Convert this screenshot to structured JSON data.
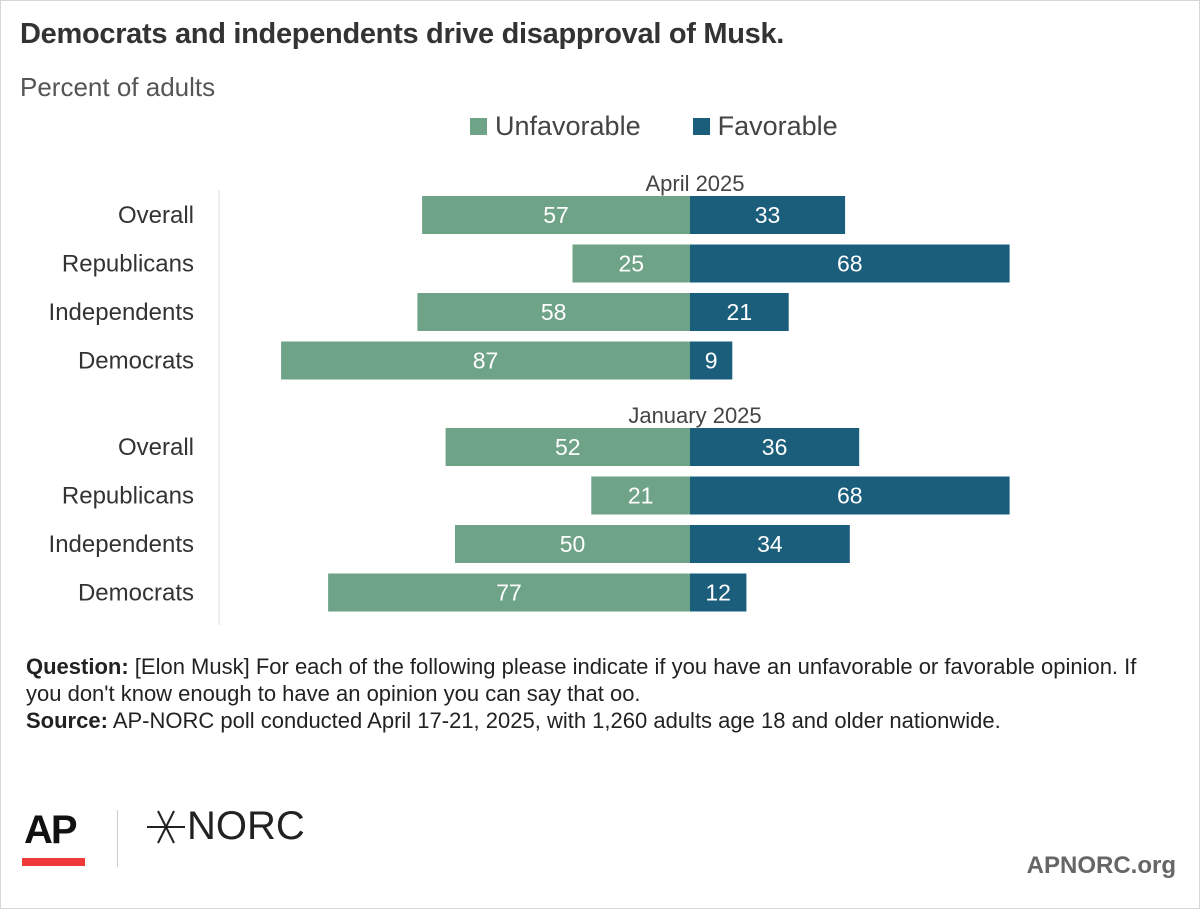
{
  "title": "Democrats and independents drive disapproval of Musk.",
  "subtitle": "Percent of adults",
  "colors": {
    "unfavorable": "#6fa387",
    "favorable": "#1a5e7c"
  },
  "chart_data": {
    "type": "bar",
    "orientation": "horizontal-diverging",
    "legend": [
      "Unfavorable",
      "Favorable"
    ],
    "legend_placement": "top",
    "groups": [
      {
        "label": "April 2025",
        "categories": [
          "Overall",
          "Republicans",
          "Independents",
          "Democrats"
        ],
        "series": [
          {
            "name": "Unfavorable",
            "values": [
              57,
              25,
              58,
              87
            ]
          },
          {
            "name": "Favorable",
            "values": [
              33,
              68,
              21,
              9
            ]
          }
        ]
      },
      {
        "label": "January 2025",
        "categories": [
          "Overall",
          "Republicans",
          "Independents",
          "Democrats"
        ],
        "series": [
          {
            "name": "Unfavorable",
            "values": [
              52,
              21,
              50,
              77
            ]
          },
          {
            "name": "Favorable",
            "values": [
              36,
              68,
              34,
              12
            ]
          }
        ]
      }
    ]
  },
  "footer": {
    "question_label": "Question:",
    "question_text": " [Elon Musk] For each of the following please indicate if you have an unfavorable or favorable opinion. If you don't know enough to have an opinion you can say that oo.",
    "source_label": "Source:",
    "source_text": " AP-NORC poll conducted April 17-21, 2025, with 1,260 adults age 18 and older nationwide."
  },
  "logos": {
    "ap": "AP",
    "norc": "NORC"
  },
  "url": "APNORC.org"
}
